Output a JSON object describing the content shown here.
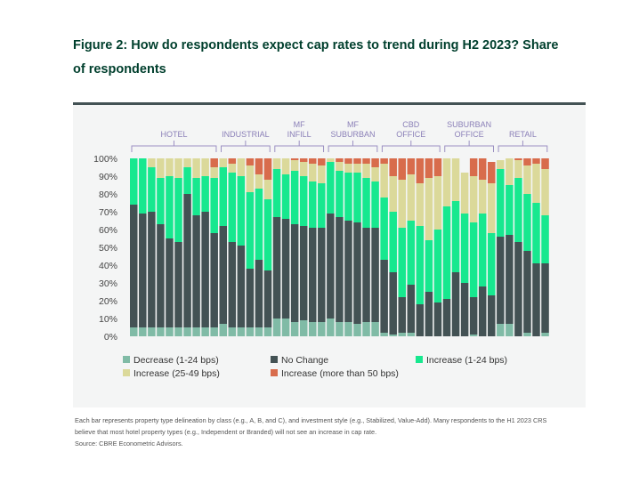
{
  "title": "Figure 2: How do respondents expect cap rates to trend during H2 2023? Share of respondents",
  "footnote": {
    "line1": "Each bar represents property type delineation by class (e.g., A, B, and C), and investment style (e.g., Stabilized, Value-Add). Many respondents to the H1 2023 CRS",
    "line2": "believe that most hotel property types (e.g., Independent or Branded) will not see an increase in cap rate.",
    "source": "Source: CBRE Econometric Advisors."
  },
  "chart_data": {
    "type": "bar",
    "stacked": true,
    "title": "Figure 2: How do respondents expect cap rates to trend during H2 2023? Share of respondents",
    "xlabel": "",
    "ylabel": "",
    "ylim": [
      0,
      100
    ],
    "yticks": [
      "0%",
      "10%",
      "20%",
      "30%",
      "40%",
      "50%",
      "60%",
      "70%",
      "80%",
      "90%",
      "100%"
    ],
    "legend_position": "bottom",
    "groups": [
      {
        "label": "HOTEL",
        "count": 10
      },
      {
        "label": "INDUSTRIAL",
        "count": 6
      },
      {
        "label": "MF\nINFILL",
        "count": 6
      },
      {
        "label": "MF\nSUBURBAN",
        "count": 6
      },
      {
        "label": "CBD\nOFFICE",
        "count": 7
      },
      {
        "label": "SUBURBAN\nOFFICE",
        "count": 6
      },
      {
        "label": "RETAIL",
        "count": 6
      }
    ],
    "series": [
      {
        "name": "Decrease (1-24 bps)",
        "color": "#80bba6",
        "values": [
          5,
          5,
          5,
          5,
          5,
          5,
          5,
          5,
          5,
          5,
          7,
          5,
          5,
          5,
          5,
          5,
          10,
          10,
          8,
          9,
          8,
          8,
          10,
          8,
          8,
          7,
          8,
          8,
          2,
          1,
          2,
          2,
          0,
          0,
          0,
          0,
          0,
          0,
          1,
          0,
          0,
          7,
          7,
          0,
          2,
          0,
          2
        ]
      },
      {
        "name": "No Change",
        "color": "#435254",
        "values": [
          69,
          64,
          65,
          58,
          50,
          48,
          75,
          63,
          65,
          53,
          55,
          48,
          46,
          33,
          38,
          32,
          57,
          56,
          55,
          53,
          53,
          53,
          59,
          59,
          57,
          57,
          53,
          53,
          41,
          35,
          20,
          27,
          18,
          25,
          19,
          21,
          36,
          30,
          21,
          28,
          23,
          49,
          50,
          53,
          46,
          41,
          39
        ]
      },
      {
        "name": "Increase (1-24 bps)",
        "color": "#17e88f",
        "values": [
          26,
          31,
          25,
          26,
          35,
          36,
          15,
          21,
          20,
          31,
          33,
          39,
          39,
          43,
          40,
          40,
          27,
          25,
          30,
          28,
          26,
          25,
          29,
          26,
          27,
          28,
          28,
          26,
          35,
          34,
          39,
          36,
          44,
          29,
          41,
          52,
          40,
          39,
          42,
          41,
          35,
          38,
          28,
          36,
          32,
          34,
          27
        ]
      },
      {
        "name": "Increase (25-49 bps)",
        "color": "#dbd99a",
        "values": [
          0,
          0,
          5,
          11,
          10,
          11,
          5,
          11,
          10,
          6,
          5,
          5,
          10,
          15,
          8,
          11,
          6,
          9,
          6,
          8,
          10,
          10,
          2,
          5,
          5,
          5,
          8,
          8,
          19,
          20,
          27,
          26,
          24,
          35,
          30,
          27,
          24,
          23,
          26,
          19,
          28,
          5,
          15,
          10,
          16,
          22,
          26
        ]
      },
      {
        "name": "Increase (more than 50 bps)",
        "color": "#d86c4c",
        "values": [
          0,
          0,
          0,
          0,
          0,
          0,
          0,
          0,
          0,
          5,
          0,
          3,
          0,
          4,
          9,
          12,
          0,
          0,
          1,
          2,
          3,
          4,
          0,
          2,
          3,
          3,
          3,
          5,
          3,
          10,
          12,
          9,
          14,
          11,
          10,
          0,
          0,
          0,
          10,
          12,
          12,
          0,
          0,
          1,
          4,
          3,
          6
        ]
      }
    ]
  },
  "legend": [
    {
      "label": "Decrease (1-24 bps)",
      "color": "#80bba6"
    },
    {
      "label": "No Change",
      "color": "#435254"
    },
    {
      "label": "Increase  (1-24 bps)",
      "color": "#17e88f"
    },
    {
      "label": "Increase (25-49 bps)",
      "color": "#dbd99a"
    },
    {
      "label": "Increase (more than 50 bps)",
      "color": "#d86c4c"
    }
  ]
}
